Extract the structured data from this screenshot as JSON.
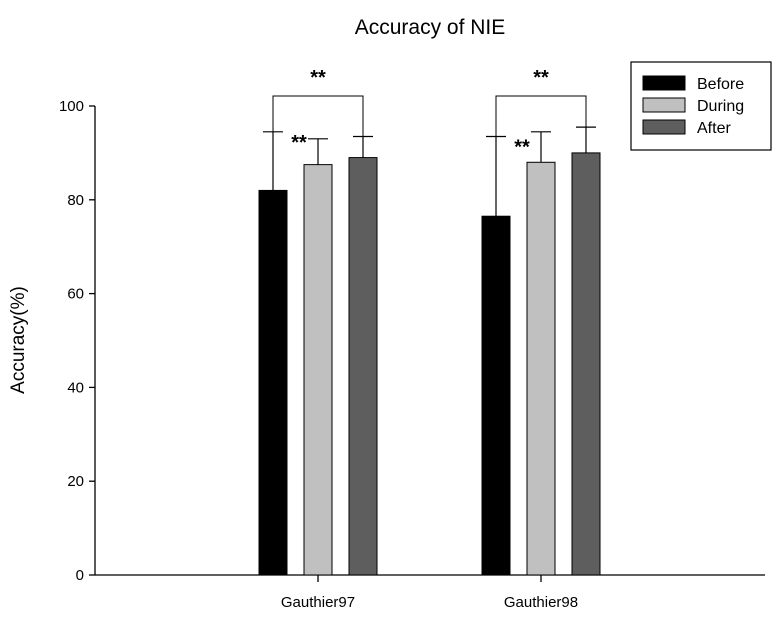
{
  "chart_data": {
    "type": "bar",
    "title": "Accuracy of NIE",
    "xlabel": "",
    "ylabel": "Accuracy(%)",
    "ylim": [
      0,
      100
    ],
    "yticks": [
      0,
      20,
      40,
      60,
      80,
      100
    ],
    "categories": [
      "Gauthier97",
      "Gauthier98"
    ],
    "series": [
      {
        "name": "Before",
        "values": [
          82,
          76.5
        ],
        "errors": [
          12.5,
          17
        ],
        "color": "#000000"
      },
      {
        "name": "During",
        "values": [
          87.5,
          88
        ],
        "errors": [
          5.5,
          6.5
        ],
        "color": "#c0c0c0"
      },
      {
        "name": "After",
        "values": [
          89,
          90
        ],
        "errors": [
          4.5,
          5.5
        ],
        "color": "#5e5e5e"
      }
    ],
    "legend_position": "top-right",
    "grid": false,
    "annotations": [
      {
        "text": "**",
        "category": "Gauthier97",
        "bracket": [
          "Before",
          "After"
        ]
      },
      {
        "text": "**",
        "category": "Gauthier97",
        "beside": "Before"
      },
      {
        "text": "**",
        "category": "Gauthier98",
        "bracket": [
          "Before",
          "After"
        ]
      },
      {
        "text": "**",
        "category": "Gauthier98",
        "beside": "Before"
      }
    ]
  }
}
